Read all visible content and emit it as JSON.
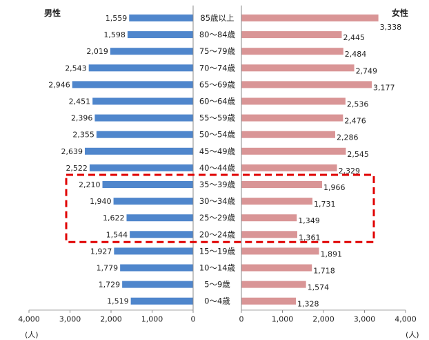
{
  "chart_data": {
    "type": "bar",
    "orientation": "horizontal",
    "layout": "population-pyramid",
    "categories": [
      "85歳以上",
      "80～84歳",
      "75～79歳",
      "70～74歳",
      "65～69歳",
      "60～64歳",
      "55～59歳",
      "50～54歳",
      "45～49歳",
      "40～44歳",
      "35～39歳",
      "30～34歳",
      "25～29歳",
      "20～24歳",
      "15～19歳",
      "10～14歳",
      "5～9歳",
      "0～4歳"
    ],
    "series": [
      {
        "name": "男性",
        "color": "#4f86cc",
        "values": [
          1559,
          1598,
          2019,
          2543,
          2946,
          2451,
          2396,
          2355,
          2639,
          2522,
          2210,
          1940,
          1622,
          1544,
          1927,
          1779,
          1729,
          1519
        ],
        "labels": [
          "1,559",
          "1,598",
          "2,019",
          "2,543",
          "2,946",
          "2,451",
          "2,396",
          "2,355",
          "2,639",
          "2,522",
          "2,210",
          "1,940",
          "1,622",
          "1,544",
          "1,927",
          "1,779",
          "1,729",
          "1,519"
        ]
      },
      {
        "name": "女性",
        "color": "#d99596",
        "values": [
          3338,
          2445,
          2484,
          2749,
          3177,
          2536,
          2476,
          2286,
          2545,
          2329,
          1966,
          1731,
          1349,
          1361,
          1891,
          1718,
          1574,
          1328
        ],
        "labels": [
          "3,338",
          "2,445",
          "2,484",
          "2,749",
          "3,177",
          "2,536",
          "2,476",
          "2,286",
          "2,545",
          "2,329",
          "1,966",
          "1,731",
          "1,349",
          "1,361",
          "1,891",
          "1,718",
          "1,574",
          "1,328"
        ]
      }
    ],
    "xlim": [
      0,
      4000
    ],
    "x_ticks": [
      "4,000",
      "3,000",
      "2,000",
      "1,000",
      "0"
    ],
    "x_ticks_right": [
      "0",
      "1,000",
      "2,000",
      "3,000",
      "4,000"
    ],
    "unit_left": "(人)",
    "unit_right": "(人)",
    "highlight": {
      "from": "35～39歳",
      "to": "20～24歳",
      "color": "#e00000",
      "style": "dashed"
    }
  }
}
